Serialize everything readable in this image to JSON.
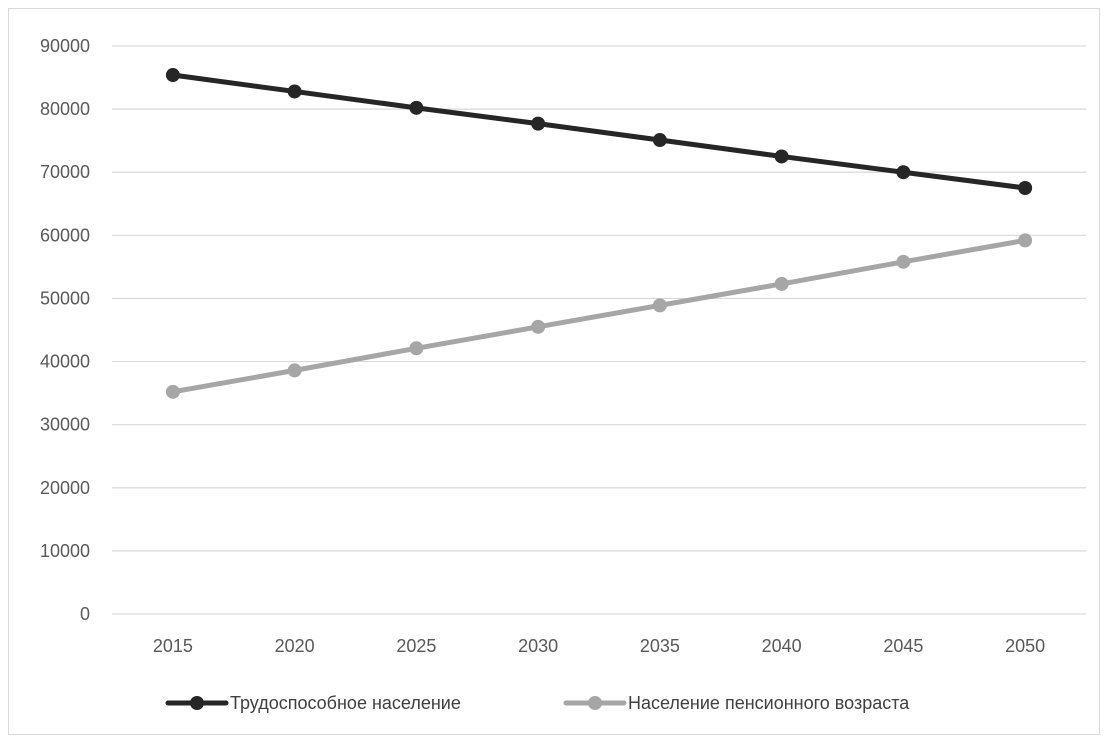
{
  "chart_data": {
    "type": "line",
    "title": "",
    "xlabel": "",
    "ylabel": "",
    "categories": [
      "2015",
      "2020",
      "2025",
      "2030",
      "2035",
      "2040",
      "2045",
      "2050"
    ],
    "y_ticks": [
      "0",
      "10000",
      "20000",
      "30000",
      "40000",
      "50000",
      "60000",
      "70000",
      "80000",
      "90000"
    ],
    "ylim": [
      0,
      90000
    ],
    "grid": "horizontal",
    "legend_position": "bottom",
    "series": [
      {
        "name": "Трудоспособное население",
        "color": "#262626",
        "values": [
          85400,
          82800,
          80200,
          77700,
          75100,
          72500,
          70000,
          67500
        ]
      },
      {
        "name": "Население пенсионного возраста",
        "color": "#a6a6a6",
        "values": [
          35200,
          38600,
          42100,
          45500,
          48900,
          52300,
          55800,
          59200
        ]
      }
    ]
  }
}
